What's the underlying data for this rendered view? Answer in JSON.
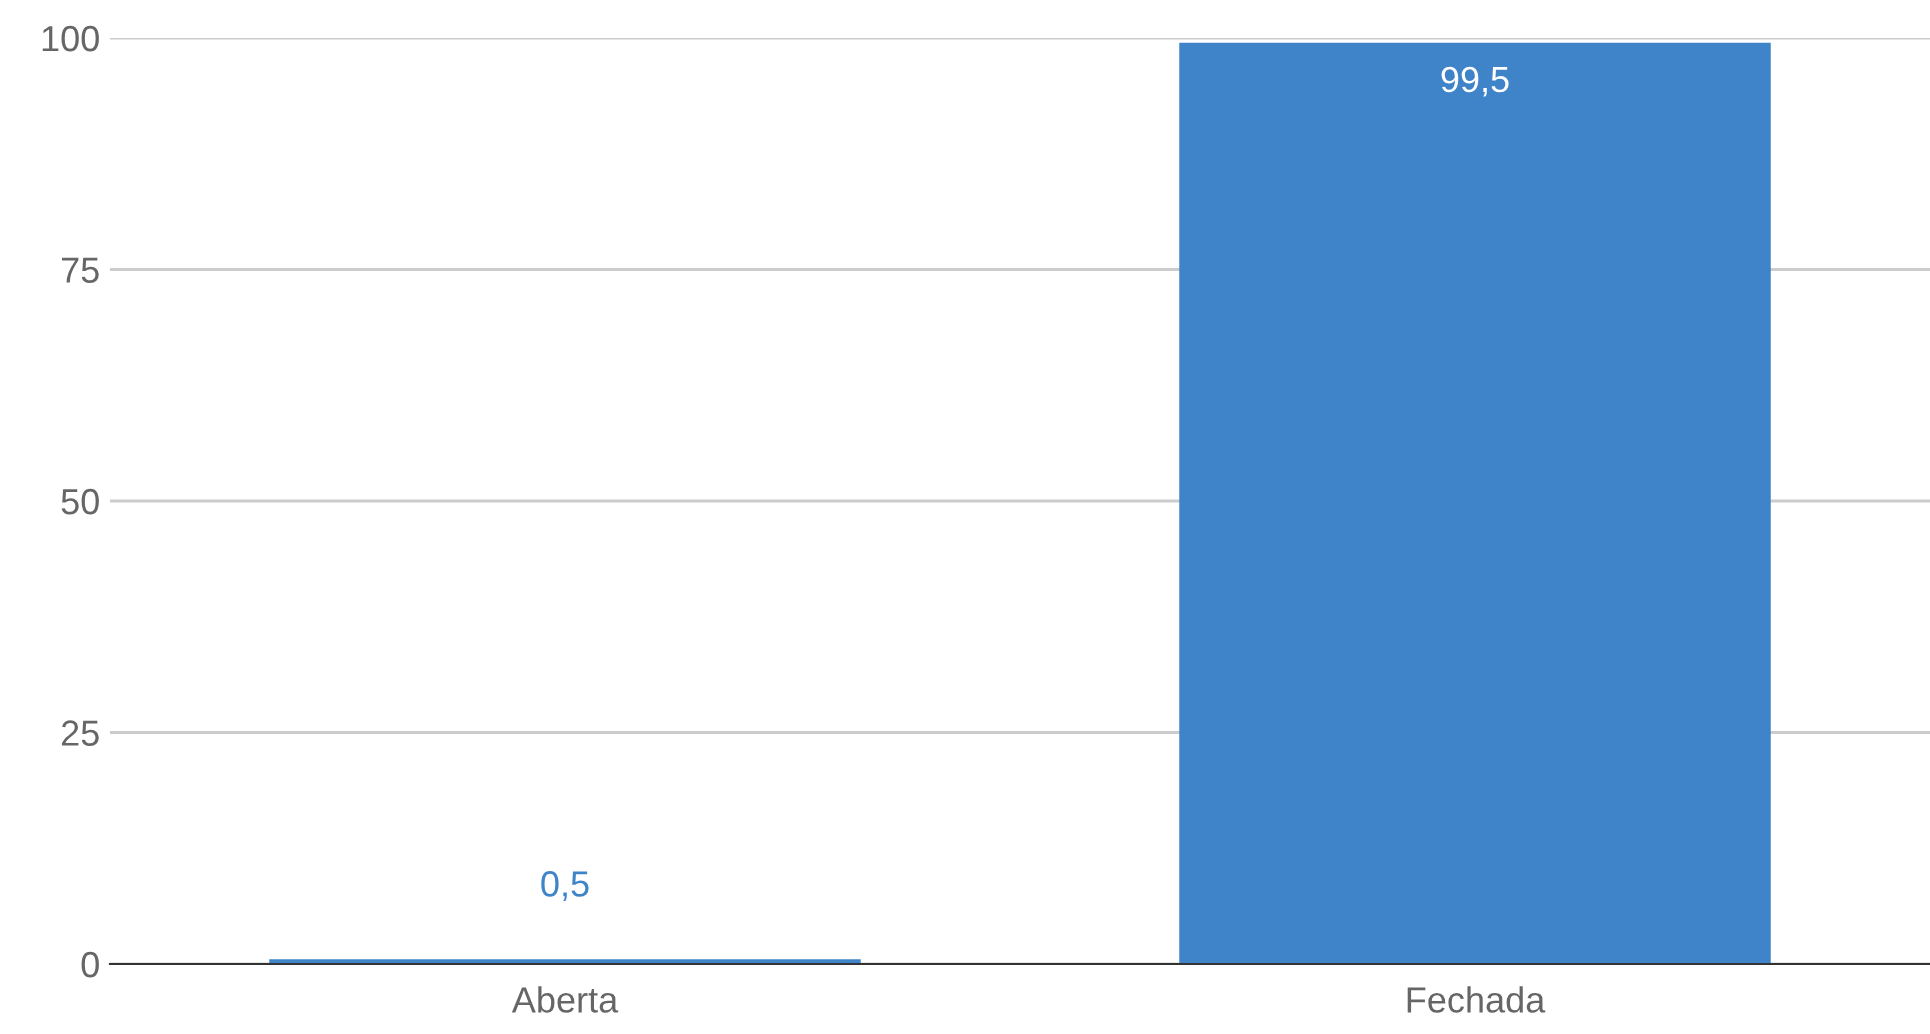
{
  "chart_data": {
    "type": "bar",
    "categories": [
      "Aberta",
      "Fechada"
    ],
    "values": [
      0.5,
      99.5
    ],
    "value_labels": [
      "0,5",
      "99,5"
    ],
    "color": "#3f84c8",
    "ylim": [
      0,
      100
    ],
    "yticks": [
      0,
      25,
      50,
      75,
      100
    ],
    "grid": "y"
  }
}
